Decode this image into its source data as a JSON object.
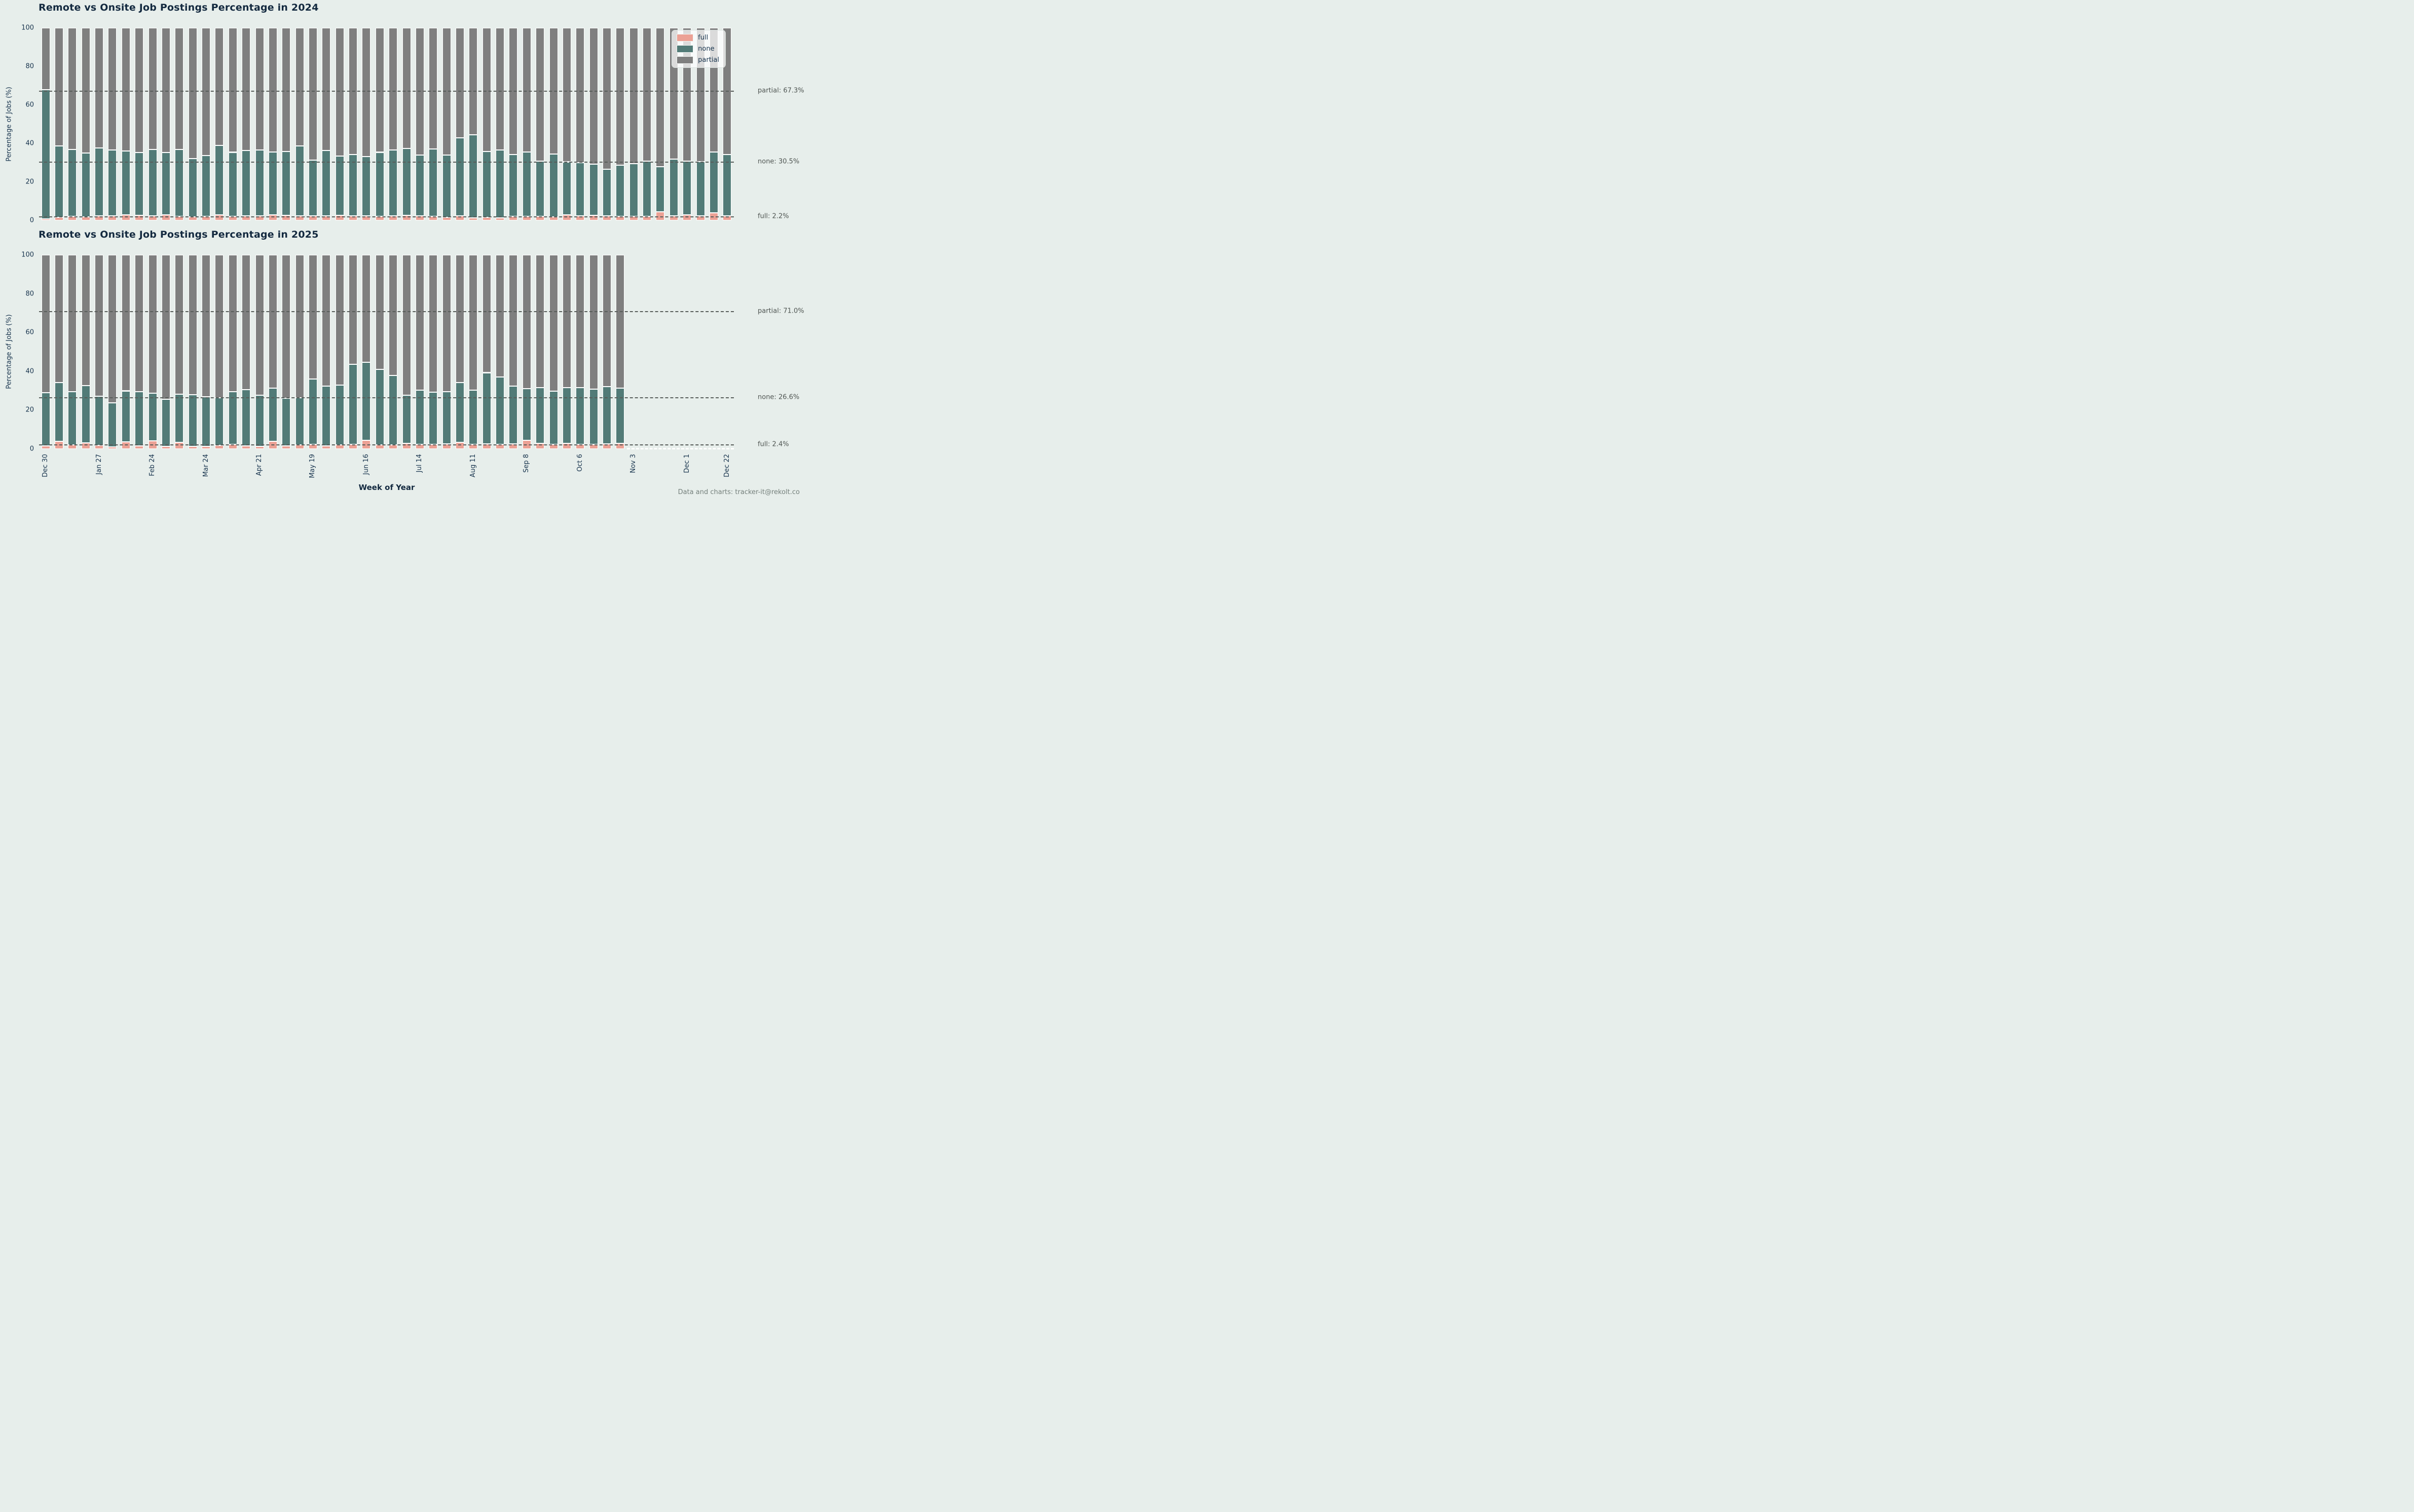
{
  "page": {
    "footer": "Data and charts: tracker-it@rekolt.co"
  },
  "colors": {
    "background": "#e7eeeb",
    "full": "#eca195",
    "none": "#527b77",
    "partial": "#7f7f7f",
    "title_text": "#13293f",
    "axis_text": "#16324c",
    "annotation_text": "#4f5552",
    "dashed_line": "#585d5a",
    "bar_edge": "#ffffff",
    "footer_text": "#75807c"
  },
  "legend": {
    "position": "upper-right",
    "items": [
      {
        "label": "full",
        "color": "#eca195"
      },
      {
        "label": "none",
        "color": "#527b77"
      },
      {
        "label": "partial",
        "color": "#7f7f7f"
      }
    ]
  },
  "axes": {
    "ylabel": "Percentage of Jobs (%)",
    "xlabel": "Week of Year",
    "yticks": [
      0,
      20,
      40,
      60,
      80,
      100
    ],
    "ylim": [
      0,
      100
    ],
    "xtick_labels": [
      "Dec 30",
      "Jan 27",
      "Feb 24",
      "Mar 24",
      "Apr 21",
      "May 19",
      "Jun 16",
      "Jul 14",
      "Aug 11",
      "Sep 8",
      "Oct 6",
      "Nov 3",
      "Dec 1",
      "Dec 22"
    ],
    "xtick_slots": [
      0,
      4,
      8,
      12,
      16,
      20,
      24,
      28,
      32,
      36,
      40,
      44,
      48,
      51
    ],
    "total_slots": 52
  },
  "chart_data": [
    {
      "type": "bar",
      "stacked": true,
      "title": "Remote vs Onsite Job Postings Percentage in 2024",
      "weeks": 52,
      "grid": "dashed-annotation-lines-only",
      "series": [
        {
          "name": "full",
          "values": [
            0.9,
            1.5,
            2.0,
            1.8,
            2.5,
            2.5,
            3.0,
            2.6,
            2.3,
            2.8,
            2.1,
            1.9,
            2.2,
            2.9,
            2.1,
            2.5,
            2.4,
            2.9,
            2.6,
            2.3,
            2.5,
            2.4,
            2.7,
            2.5,
            2.3,
            2.1,
            2.4,
            2.7,
            2.3,
            2.0,
            1.5,
            2.3,
            1.2,
            1.6,
            1.2,
            2.2,
            2.2,
            2.2,
            1.9,
            2.8,
            2.3,
            2.6,
            2.5,
            2.1,
            2.0,
            2.2,
            4.4,
            2.4,
            3.0,
            2.5,
            4.0,
            2.3
          ]
        },
        {
          "name": "none",
          "values": [
            67.0,
            37.3,
            34.8,
            33.1,
            35.1,
            34.2,
            33.0,
            32.7,
            34.5,
            32.5,
            34.8,
            30.2,
            31.4,
            36.0,
            33.3,
            33.7,
            34.2,
            32.7,
            33.1,
            36.5,
            28.8,
            33.9,
            30.8,
            31.7,
            30.8,
            33.3,
            34.3,
            34.8,
            31.6,
            35.2,
            32.4,
            40.6,
            43.3,
            34.2,
            35.5,
            32.0,
            33.4,
            28.6,
            32.5,
            27.6,
            27.7,
            26.5,
            24.1,
            26.6,
            27.6,
            28.7,
            23.6,
            29.5,
            27.7,
            28.1,
            31.5,
            31.9
          ]
        },
        {
          "name": "partial",
          "values": [
            32.1,
            61.2,
            63.2,
            65.1,
            62.4,
            63.3,
            64.0,
            64.7,
            63.2,
            64.7,
            63.1,
            67.9,
            66.4,
            61.1,
            64.6,
            63.8,
            63.4,
            64.4,
            64.3,
            61.2,
            68.7,
            63.7,
            66.5,
            65.8,
            66.9,
            64.6,
            63.3,
            62.5,
            66.1,
            62.8,
            66.1,
            57.1,
            55.5,
            64.2,
            63.3,
            65.8,
            64.4,
            69.2,
            65.6,
            69.6,
            70.0,
            70.9,
            73.4,
            71.3,
            70.4,
            69.1,
            72.0,
            68.1,
            69.3,
            69.4,
            64.5,
            65.8
          ]
        }
      ],
      "annotations": [
        {
          "label": "partial: 67.3%",
          "value": 67.3
        },
        {
          "label": "none: 30.5%",
          "value": 30.5
        },
        {
          "label": "full: 2.2%",
          "value": 2.2
        }
      ]
    },
    {
      "type": "bar",
      "stacked": true,
      "title": "Remote vs Onsite Job Postings Percentage in 2025",
      "weeks": 44,
      "grid": "dashed-annotation-lines-only",
      "series": [
        {
          "name": "full",
          "values": [
            1.5,
            4.0,
            2.2,
            3.2,
            1.8,
            1.0,
            3.6,
            1.5,
            4.3,
            1.2,
            3.5,
            1.3,
            1.3,
            1.8,
            2.3,
            1.5,
            1.2,
            3.8,
            1.5,
            2.0,
            2.4,
            1.5,
            2.0,
            2.3,
            4.4,
            2.0,
            2.1,
            2.9,
            2.4,
            2.4,
            2.5,
            3.4,
            2.4,
            2.5,
            2.4,
            2.5,
            4.4,
            2.9,
            2.4,
            2.9,
            2.4,
            2.4,
            2.5,
            2.9
          ]
        },
        {
          "name": "none",
          "values": [
            27.6,
            30.2,
            27.3,
            29.5,
            25.3,
            22.8,
            26.3,
            28.0,
            24.5,
            24.3,
            24.8,
            26.6,
            25.6,
            24.6,
            27.1,
            29.0,
            26.5,
            27.6,
            24.6,
            24.4,
            33.7,
            30.9,
            31.0,
            41.4,
            40.2,
            39.0,
            35.7,
            24.8,
            27.9,
            26.8,
            26.9,
            30.9,
            28.0,
            36.8,
            34.7,
            29.8,
            26.8,
            28.7,
            27.3,
            28.6,
            29.2,
            28.3,
            29.6,
            28.5
          ]
        },
        {
          "name": "partial",
          "values": [
            70.9,
            65.8,
            70.5,
            67.3,
            72.9,
            76.2,
            70.1,
            70.5,
            71.2,
            74.5,
            71.7,
            72.1,
            73.1,
            73.6,
            70.6,
            69.5,
            72.3,
            68.6,
            73.9,
            73.6,
            63.9,
            67.6,
            67.0,
            56.3,
            55.4,
            59.0,
            62.2,
            72.3,
            69.7,
            70.8,
            70.6,
            65.7,
            69.6,
            60.7,
            62.9,
            67.7,
            68.8,
            68.4,
            70.3,
            68.5,
            68.4,
            69.3,
            67.9,
            68.6
          ]
        }
      ],
      "annotations": [
        {
          "label": "partial: 71.0%",
          "value": 71.0
        },
        {
          "label": "none: 26.6%",
          "value": 26.6
        },
        {
          "label": "full: 2.4%",
          "value": 2.4
        }
      ]
    }
  ]
}
